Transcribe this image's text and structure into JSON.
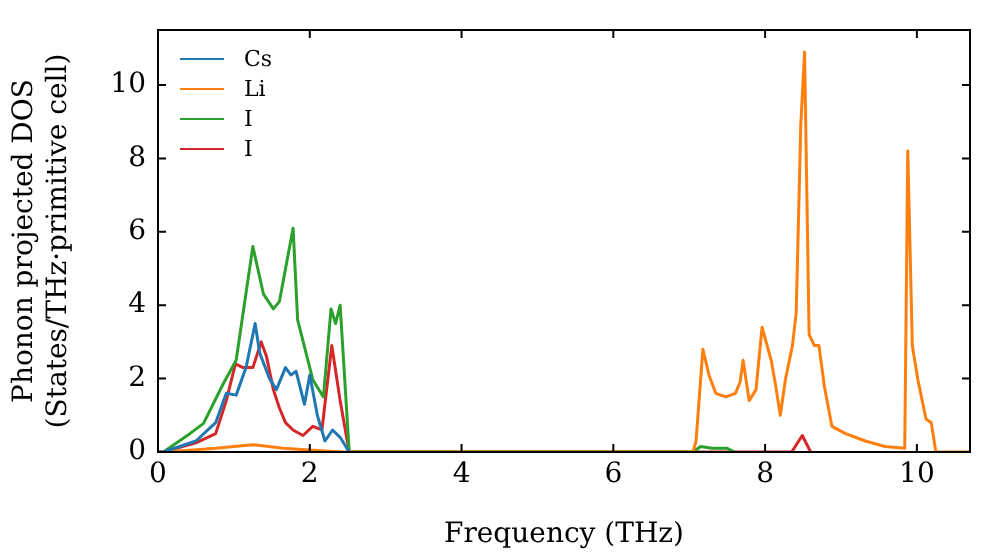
{
  "chart_data": {
    "type": "line",
    "xlabel": "Frequency (THz)",
    "ylabel": "Phonon projected DOS\n(States/THz·primitive cell)",
    "xlim": [
      0,
      10.7
    ],
    "ylim": [
      0,
      11.5
    ],
    "xticks": [
      0,
      2,
      4,
      6,
      8,
      10
    ],
    "yticks": [
      0,
      2,
      4,
      6,
      8,
      10
    ],
    "grid": false,
    "legend": "top left",
    "marker": "none",
    "line_style": "solid",
    "series": [
      {
        "name": "Cs",
        "color": "#1f77b4",
        "x": [
          0,
          0.07,
          0.5,
          0.76,
          0.9,
          1.03,
          1.16,
          1.28,
          1.34,
          1.47,
          1.56,
          1.68,
          1.75,
          1.82,
          1.93,
          2.0,
          2.1,
          2.2,
          2.3,
          2.4,
          2.52
        ],
        "values": [
          0,
          0,
          0.3,
          0.8,
          1.6,
          1.55,
          2.3,
          3.5,
          2.7,
          2.0,
          1.7,
          2.3,
          2.1,
          2.2,
          1.3,
          2.1,
          1.0,
          0.3,
          0.6,
          0.4,
          0
        ]
      },
      {
        "name": "Li",
        "color": "#ff7f0e",
        "x": [
          0,
          0.07,
          0.42,
          0.76,
          1.25,
          1.65,
          2.04,
          2.44,
          7.05,
          7.09,
          7.18,
          7.26,
          7.35,
          7.48,
          7.61,
          7.67,
          7.71,
          7.79,
          7.88,
          7.96,
          8.08,
          8.14,
          8.2,
          8.27,
          8.36,
          8.41,
          8.47,
          8.52,
          8.58,
          8.65,
          8.71,
          8.78,
          8.88,
          9.06,
          9.32,
          9.58,
          9.84,
          9.88,
          9.94,
          10.01,
          10.12,
          10.19,
          10.25,
          10.7
        ],
        "values": [
          0,
          0,
          0.05,
          0.1,
          0.2,
          0.1,
          0.05,
          0,
          0,
          0.3,
          2.8,
          2.1,
          1.6,
          1.5,
          1.6,
          1.9,
          2.5,
          1.4,
          1.7,
          3.4,
          2.5,
          1.8,
          1.0,
          2.0,
          2.9,
          3.8,
          8.9,
          10.9,
          3.2,
          2.9,
          2.9,
          1.8,
          0.7,
          0.5,
          0.3,
          0.15,
          0.1,
          8.2,
          2.9,
          2.0,
          0.9,
          0.8,
          0,
          0
        ]
      },
      {
        "name": "I",
        "color": "#2ca02c",
        "x": [
          0,
          0.07,
          0.42,
          0.6,
          0.86,
          1.03,
          1.25,
          1.39,
          1.52,
          1.6,
          1.78,
          1.84,
          2.04,
          2.18,
          2.28,
          2.34,
          2.4,
          2.52,
          7.05,
          7.15,
          7.3,
          7.5,
          7.6
        ],
        "values": [
          0,
          0,
          0.5,
          0.78,
          1.86,
          2.5,
          5.6,
          4.3,
          3.9,
          4.1,
          6.1,
          3.6,
          1.97,
          1.5,
          3.9,
          3.5,
          4.0,
          0,
          0,
          0.15,
          0.1,
          0.1,
          0
        ]
      },
      {
        "name": "I",
        "color": "#d62728",
        "x": [
          0,
          0.07,
          0.5,
          0.76,
          0.9,
          1.02,
          1.12,
          1.25,
          1.36,
          1.43,
          1.52,
          1.6,
          1.68,
          1.78,
          1.91,
          2.04,
          2.16,
          2.29,
          2.4,
          2.52,
          8.35,
          8.49,
          8.6
        ],
        "values": [
          0,
          0,
          0.25,
          0.5,
          1.4,
          2.4,
          2.3,
          2.3,
          3.0,
          2.6,
          1.7,
          1.2,
          0.8,
          0.6,
          0.45,
          0.7,
          0.6,
          2.9,
          1.4,
          0,
          0,
          0.45,
          0
        ]
      }
    ]
  }
}
